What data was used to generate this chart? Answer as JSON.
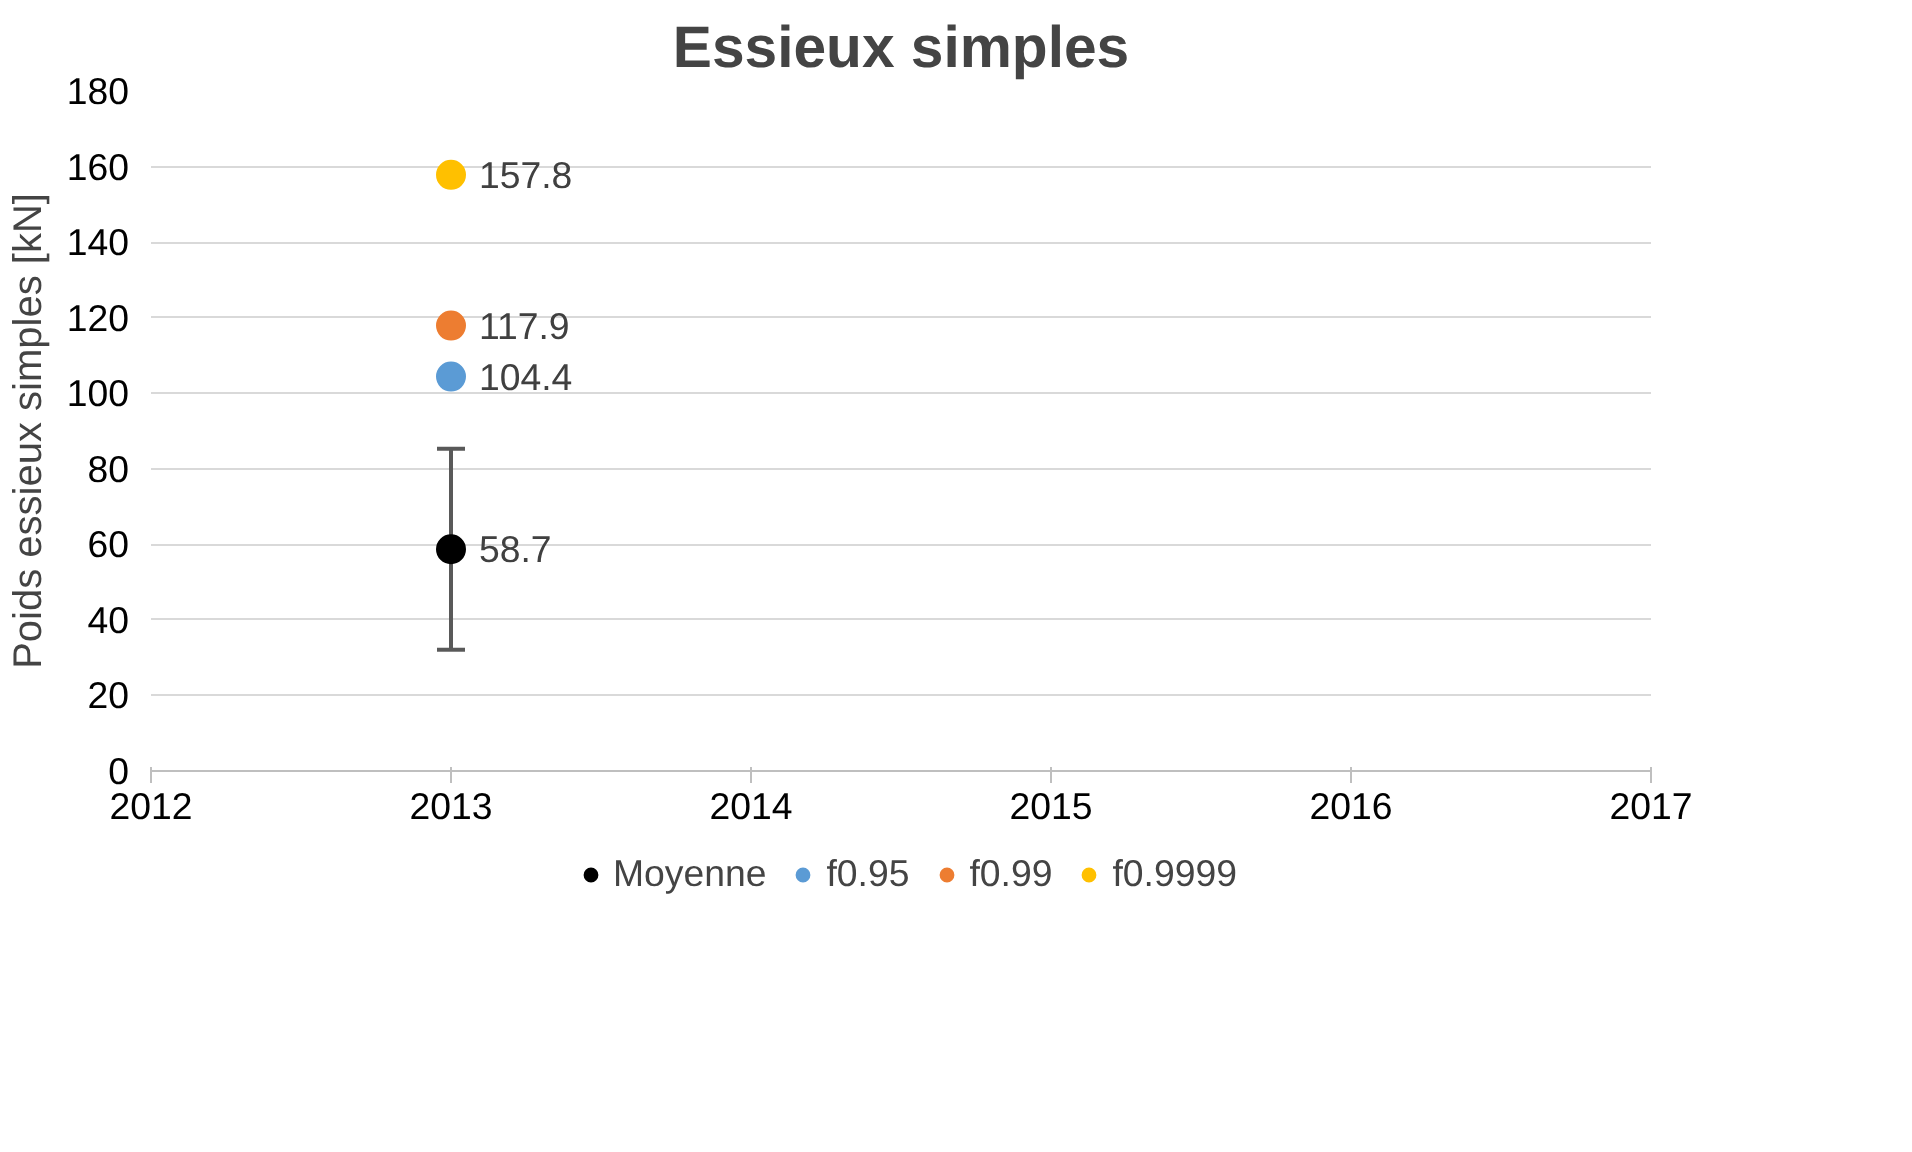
{
  "chart_data": {
    "type": "scatter",
    "title": "Essieux simples",
    "ylabel": "Poids essieux simples [kN]",
    "x": [
      2013
    ],
    "xlim": [
      2012,
      2017
    ],
    "xticks": [
      2012,
      2013,
      2014,
      2015,
      2016,
      2017
    ],
    "ylim": [
      0,
      180
    ],
    "yticks": [
      0,
      20,
      40,
      60,
      80,
      100,
      120,
      140,
      160,
      180
    ],
    "grid": "y",
    "legend": "bottom",
    "marker": "circle",
    "data_labels": true,
    "series": [
      {
        "name": "Moyenne",
        "color": "#000000",
        "values": [
          58.7
        ],
        "errors": [
          26.6
        ]
      },
      {
        "name": "f0.95",
        "color": "#5b9bd5",
        "values": [
          104.4
        ]
      },
      {
        "name": "f0.99",
        "color": "#ed7d31",
        "values": [
          117.9
        ]
      },
      {
        "name": "f0.9999",
        "color": "#ffc000",
        "values": [
          157.8
        ]
      }
    ]
  }
}
